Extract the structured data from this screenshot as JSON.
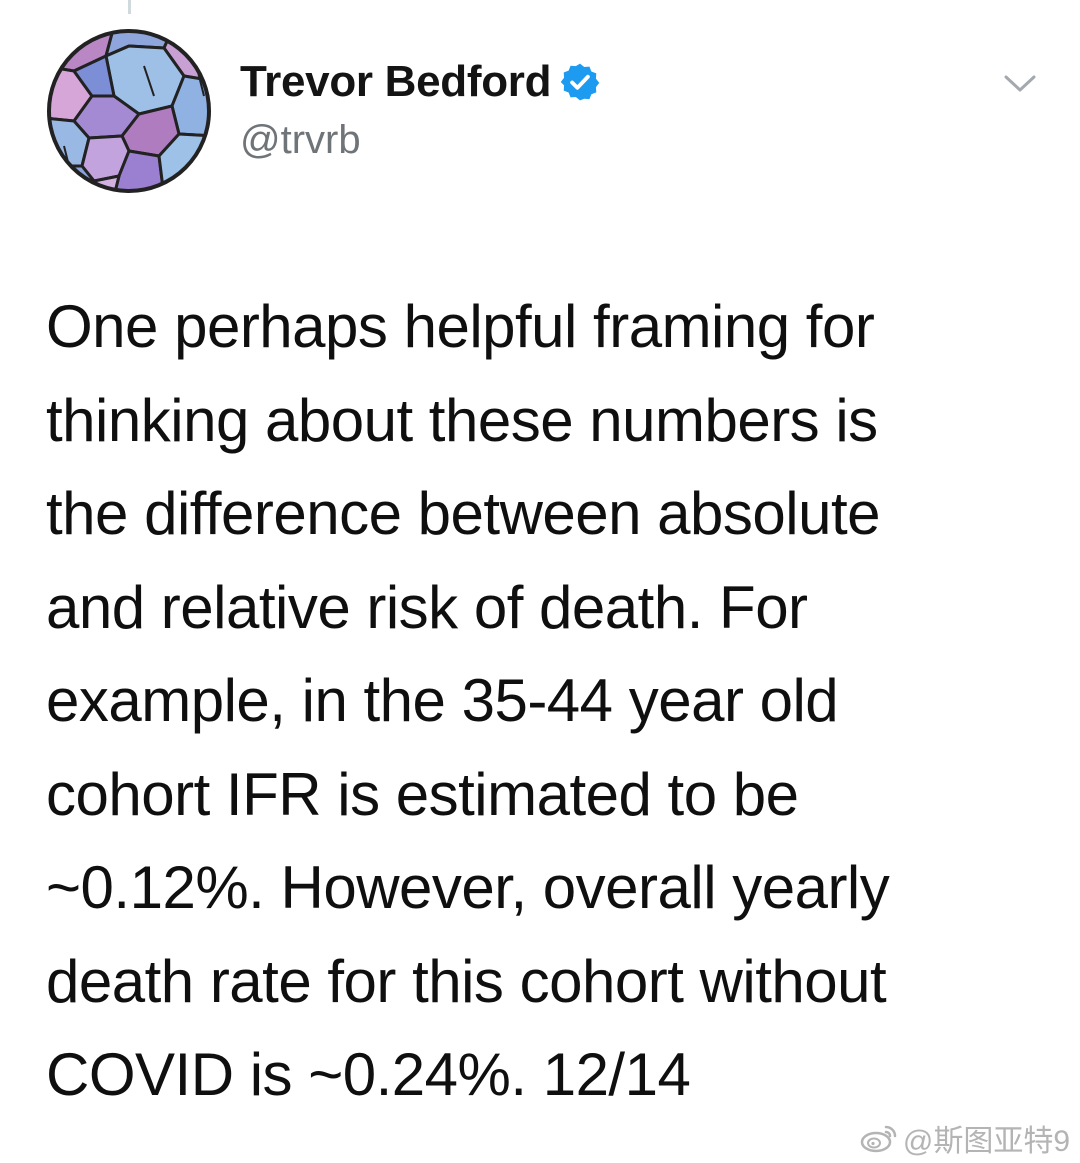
{
  "tweet": {
    "author": {
      "display_name": "Trevor Bedford",
      "handle": "@trvrb",
      "verified": true,
      "avatar_icon": "geometric-mosaic-avatar",
      "verified_icon": "verified-badge-icon"
    },
    "menu_icon": "chevron-down-icon",
    "text_lines": [
      "One perhaps helpful framing for",
      "thinking about these numbers is",
      "the difference between absolute",
      "and relative risk of death. For",
      "example, in the 35-44 year old",
      "cohort IFR is estimated to be",
      "~0.12%. However, overall yearly",
      "death rate for this cohort without",
      "COVID is ~0.24%. 12/14"
    ]
  },
  "watermark": {
    "icon": "weibo-logo-icon",
    "text": "@斯图亚特9"
  },
  "colors": {
    "verified_blue": "#1d9bf0",
    "text_primary": "#0f0f0f",
    "text_secondary": "#6f7479",
    "watermark": "#b4b4b4"
  }
}
